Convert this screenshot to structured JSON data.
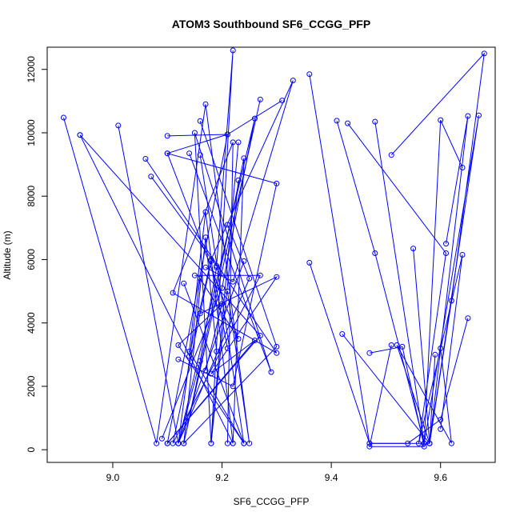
{
  "chart_data": {
    "type": "scatter",
    "title": "ATOM3 Southbound SF6_CCGG_PFP",
    "xlabel": "SF6_CCGG_PFP",
    "ylabel": "Altitude (m)",
    "xlim": [
      8.88,
      9.7
    ],
    "ylim": [
      -400,
      12700
    ],
    "x_ticks": [
      9.0,
      9.2,
      9.4,
      9.6
    ],
    "x_tick_labels": [
      "9.0",
      "9.2",
      "9.4",
      "9.6"
    ],
    "y_ticks": [
      0,
      2000,
      4000,
      6000,
      8000,
      10000,
      12000
    ],
    "y_tick_labels": [
      "0",
      "2000",
      "4000",
      "6000",
      "8000",
      "10000",
      "12000"
    ],
    "color": "#0000ff",
    "marker": "open-circle",
    "connected": true,
    "grid": false,
    "series": [
      {
        "x": [
          8.91,
          9.08,
          9.17,
          9.25,
          9.21
        ],
        "y": [
          10480,
          200,
          10900,
          200,
          5000
        ]
      },
      {
        "x": [
          8.94,
          9.22,
          9.24,
          9.13,
          9.27
        ],
        "y": [
          9930,
          200,
          9200,
          200,
          11050
        ]
      },
      {
        "x": [
          8.94,
          9.27,
          9.1,
          9.21,
          9.31
        ],
        "y": [
          9930,
          3600,
          200,
          9950,
          11020
        ]
      },
      {
        "x": [
          9.01,
          9.12,
          9.26,
          9.2,
          9.09
        ],
        "y": [
          10230,
          200,
          10450,
          5100,
          350
        ]
      },
      {
        "x": [
          9.06,
          9.3,
          9.11,
          9.22,
          9.21
        ],
        "y": [
          9180,
          3050,
          4950,
          9700,
          200
        ]
      },
      {
        "x": [
          9.07,
          9.19,
          9.22,
          9.18,
          9.23
        ],
        "y": [
          8620,
          5800,
          12600,
          200,
          8500
        ]
      },
      {
        "x": [
          9.1,
          9.21,
          9.1,
          9.3,
          9.22,
          9.12
        ],
        "y": [
          9900,
          9950,
          9350,
          8400,
          2000,
          2850
        ]
      },
      {
        "x": [
          9.1,
          9.23,
          9.16,
          9.12,
          9.24
        ],
        "y": [
          9350,
          3500,
          5400,
          200,
          5950
        ]
      },
      {
        "x": [
          9.14,
          9.29,
          9.15,
          9.18,
          9.23
        ],
        "y": [
          9350,
          2450,
          10000,
          200,
          9700
        ]
      },
      {
        "x": [
          9.16,
          9.3,
          9.13,
          9.17,
          9.19
        ],
        "y": [
          10370,
          3250,
          200,
          6700,
          3100
        ]
      },
      {
        "x": [
          9.16,
          9.24,
          9.12,
          9.2,
          9.17
        ],
        "y": [
          9300,
          200,
          3300,
          4600,
          2500
        ]
      },
      {
        "x": [
          9.13,
          9.24,
          9.14,
          9.17,
          9.22
        ],
        "y": [
          5250,
          200,
          3100,
          7500,
          200
        ]
      },
      {
        "x": [
          9.15,
          9.27,
          9.11,
          9.18,
          9.21
        ],
        "y": [
          5500,
          5500,
          200,
          5950,
          3200
        ]
      },
      {
        "x": [
          9.16,
          9.3,
          9.18,
          9.26,
          9.1
        ],
        "y": [
          4300,
          5450,
          2400,
          3450,
          200
        ]
      },
      {
        "x": [
          9.17,
          9.22,
          9.33,
          9.18,
          9.14
        ],
        "y": [
          5750,
          5300,
          11650,
          6000,
          2950
        ]
      },
      {
        "x": [
          9.19,
          9.16,
          9.12,
          9.25,
          9.21
        ],
        "y": [
          5750,
          2800,
          200,
          5400,
          7100
        ]
      },
      {
        "x": [
          9.36,
          9.47,
          9.58,
          9.65,
          9.61
        ],
        "y": [
          11850,
          200,
          200,
          10530,
          6500
        ]
      },
      {
        "x": [
          9.41,
          9.48,
          9.57,
          9.6,
          9.64
        ],
        "y": [
          10380,
          6200,
          200,
          10400,
          8900
        ]
      },
      {
        "x": [
          9.43,
          9.61,
          9.56,
          9.64,
          9.6
        ],
        "y": [
          10300,
          6200,
          200,
          6150,
          650
        ]
      },
      {
        "x": [
          9.48,
          9.57,
          9.67,
          9.58,
          9.55
        ],
        "y": [
          10350,
          200,
          10550,
          200,
          6350
        ]
      },
      {
        "x": [
          9.51,
          9.68,
          9.62,
          9.58,
          9.59
        ],
        "y": [
          9300,
          12500,
          4700,
          200,
          3000
        ]
      },
      {
        "x": [
          9.36,
          9.47,
          9.54,
          9.6,
          9.65
        ],
        "y": [
          5900,
          200,
          200,
          950,
          4150
        ]
      },
      {
        "x": [
          9.42,
          9.58,
          9.52,
          9.62,
          9.6
        ],
        "y": [
          3650,
          200,
          3300,
          200,
          3200
        ]
      },
      {
        "x": [
          9.47,
          9.53,
          9.57,
          9.47,
          9.51
        ],
        "y": [
          3050,
          3250,
          100,
          100,
          3300
        ]
      }
    ]
  }
}
